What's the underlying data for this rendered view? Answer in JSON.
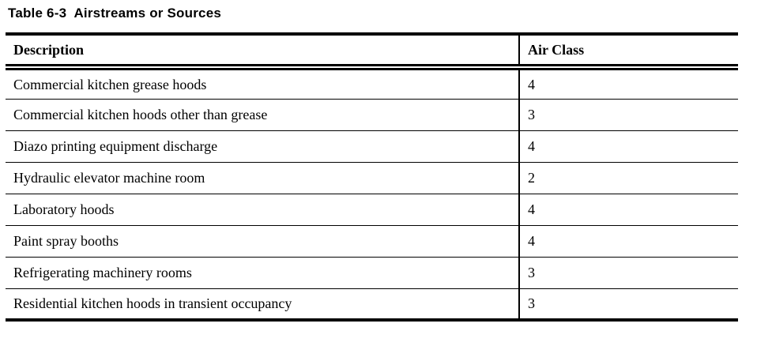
{
  "title": "Table 6-3  Airstreams or Sources",
  "table": {
    "columns": [
      {
        "label": "Description"
      },
      {
        "label": "Air Class"
      }
    ],
    "rows": [
      {
        "description": "Commercial kitchen grease hoods",
        "air_class": "4"
      },
      {
        "description": "Commercial kitchen hoods other than grease",
        "air_class": "3"
      },
      {
        "description": "Diazo printing equipment discharge",
        "air_class": "4"
      },
      {
        "description": "Hydraulic elevator machine room",
        "air_class": "2"
      },
      {
        "description": "Laboratory hoods",
        "air_class": "4"
      },
      {
        "description": "Paint spray booths",
        "air_class": "4"
      },
      {
        "description": "Refrigerating machinery rooms",
        "air_class": "3"
      },
      {
        "description": "Residential kitchen hoods in transient occupancy",
        "air_class": "3"
      }
    ]
  },
  "colors": {
    "text": "#000000",
    "background": "#ffffff",
    "rule": "#000000"
  }
}
